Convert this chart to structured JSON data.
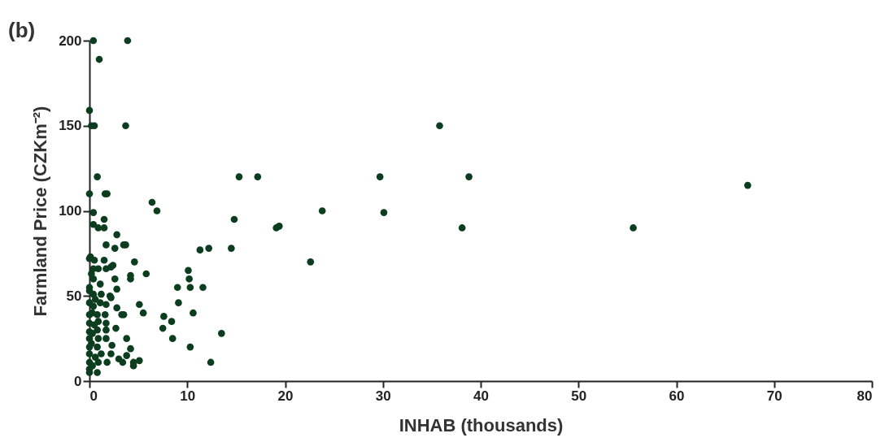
{
  "chart_data": {
    "type": "scatter",
    "title": "(b)",
    "xlabel": "INHAB (thousands)",
    "ylabel": "Farmland Price (CZKm⁻²)",
    "xlim": [
      0,
      80
    ],
    "ylim": [
      0,
      200
    ],
    "xticks": [
      0,
      10,
      20,
      30,
      40,
      50,
      60,
      70,
      80
    ],
    "yticks": [
      0,
      50,
      100,
      150,
      200
    ],
    "grid": false,
    "legend": false,
    "marker": "circle",
    "series": [
      {
        "color": "#0b3d1e",
        "x": [
          0.4,
          3.9,
          1.0,
          0,
          0.2,
          0.5,
          3.7,
          0.8,
          0,
          1.6,
          1.8,
          0.4,
          0.4,
          0.9,
          1.5,
          1.5,
          2.8,
          1.7,
          2.6,
          3.5,
          3.7,
          0,
          0.1,
          0.5,
          1.5,
          0.4,
          0.9,
          1.7,
          2.4,
          2.2,
          4.6,
          4.2,
          4.2,
          5.8,
          2.6,
          0.4,
          1.1,
          0,
          0,
          0.4,
          1.2,
          2.1,
          2.2,
          2.8,
          0,
          0.4,
          1.1,
          1.7,
          2.8,
          3.3,
          5.1,
          5.5,
          3.5,
          0,
          0.8,
          1.6,
          0,
          0.9,
          1.7,
          0,
          0.8,
          1.7,
          2.7,
          0,
          0.9,
          1.7,
          3.8,
          0,
          0.8,
          2.3,
          4.2,
          0,
          1.2,
          2.2,
          3.8,
          0,
          0.9,
          1.8,
          3.0,
          3.4,
          4.5,
          4.5,
          5.1,
          0,
          0.8,
          0,
          0.2,
          0.3,
          0.5,
          0.3,
          0.6,
          0.2,
          0.6,
          0.3,
          6.4,
          6.9,
          7.5,
          7.6,
          8.4,
          8.5,
          9.0,
          9.1,
          10.1,
          10.2,
          10.3,
          10.6,
          10.3,
          11.3,
          12.2,
          14.5,
          11.6,
          12.4,
          13.5,
          14.8,
          15.3,
          17.2,
          19.1,
          19.4,
          22.6,
          23.8,
          29.7,
          30.1,
          35.8,
          38.1,
          38.8,
          55.6,
          67.3
        ],
        "values": [
          200,
          200,
          189,
          159,
          150,
          150,
          150,
          120,
          110,
          110,
          110,
          99,
          92,
          90,
          90,
          95,
          86,
          80,
          78,
          80,
          80,
          72,
          73,
          71,
          71,
          66,
          66,
          66,
          68,
          67,
          70,
          62,
          60,
          63,
          60,
          60,
          57,
          55,
          53,
          51,
          51,
          50,
          49,
          54,
          46,
          44,
          46,
          45,
          43,
          39,
          45,
          40,
          39,
          39,
          39,
          39,
          34,
          35,
          34,
          29,
          30,
          30,
          31,
          25,
          25,
          25,
          25,
          20,
          20,
          21,
          19,
          16,
          16,
          16,
          15,
          11,
          11,
          11,
          13,
          11,
          11,
          9,
          12,
          7,
          5,
          5,
          22,
          28,
          33,
          40,
          48,
          63,
          14,
          9,
          105,
          100,
          31,
          38,
          35,
          25,
          55,
          46,
          65,
          60,
          55,
          40,
          20,
          77,
          78,
          78,
          55,
          11,
          28,
          95,
          120,
          120,
          90,
          91,
          70,
          100,
          120,
          99,
          150,
          90,
          120,
          90,
          115
        ]
      }
    ]
  }
}
